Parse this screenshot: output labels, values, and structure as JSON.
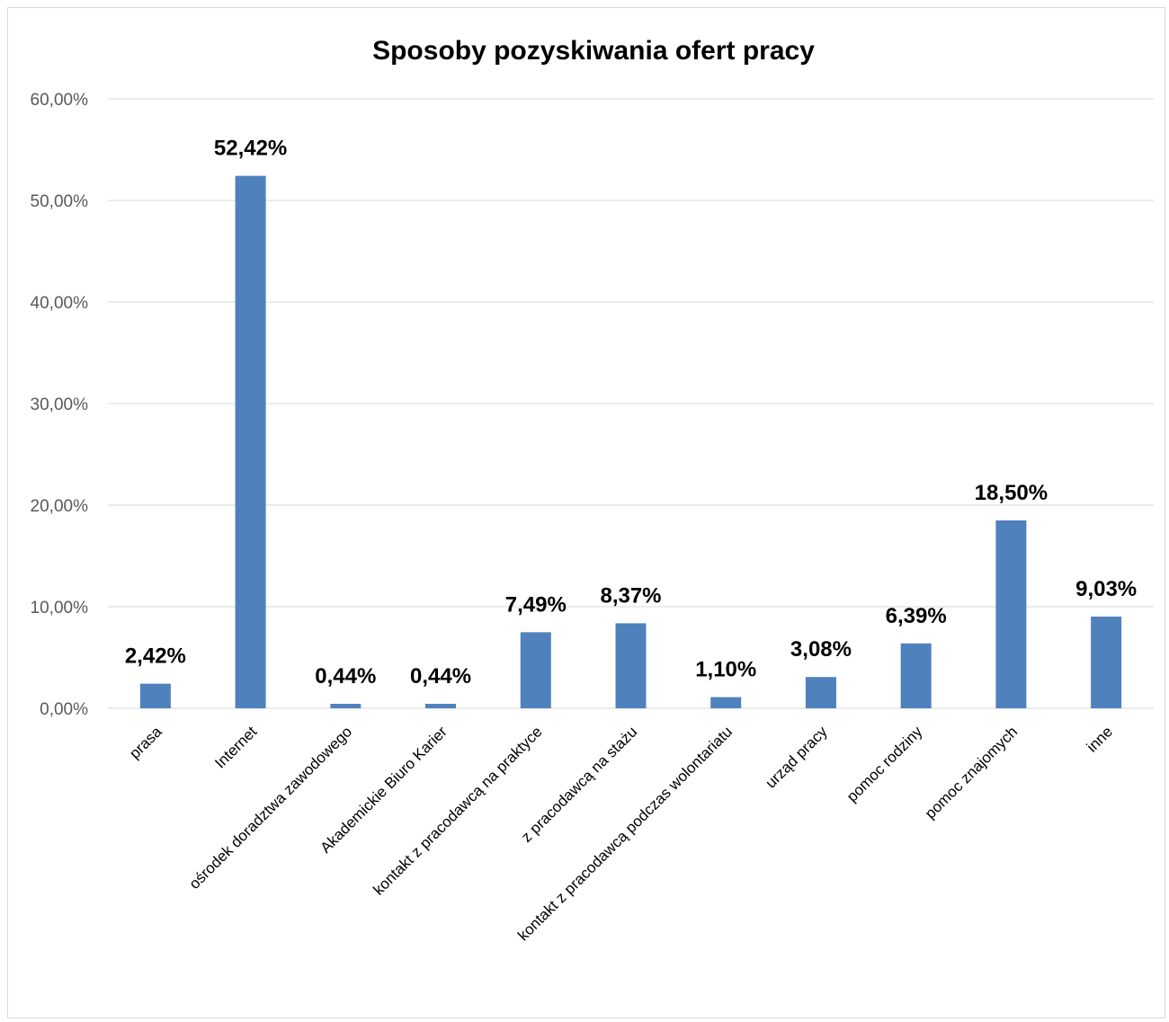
{
  "chart_data": {
    "type": "bar",
    "title": "Sposoby pozyskiwania ofert pracy",
    "xlabel": "",
    "ylabel": "",
    "categories": [
      "prasa",
      "Internet",
      "ośrodek doradztwa zawodowego",
      "Akademickie Biuro Karier",
      "kontakt z pracodawcą na praktyce",
      "z pracodawcą na stażu",
      "kontakt z pracodawcą podczas wolontariatu",
      "urząd pracy",
      "pomoc rodziny",
      "pomoc znajomych",
      "inne"
    ],
    "values": [
      2.42,
      52.42,
      0.44,
      0.44,
      7.49,
      8.37,
      1.1,
      3.08,
      6.39,
      18.5,
      9.03
    ],
    "data_labels": [
      "2,42%",
      "52,42%",
      "0,44%",
      "0,44%",
      "7,49%",
      "8,37%",
      "1,10%",
      "3,08%",
      "6,39%",
      "18,50%",
      "9,03%"
    ],
    "ylim": [
      0,
      60
    ],
    "yticks": [
      0,
      10,
      20,
      30,
      40,
      50,
      60
    ],
    "ytick_labels": [
      "0,00%",
      "10,00%",
      "20,00%",
      "30,00%",
      "40,00%",
      "50,00%",
      "60,00%"
    ],
    "grid": true,
    "legend": "none",
    "bar_color": "#4f81bd",
    "grid_color": "#d9d9d9"
  }
}
